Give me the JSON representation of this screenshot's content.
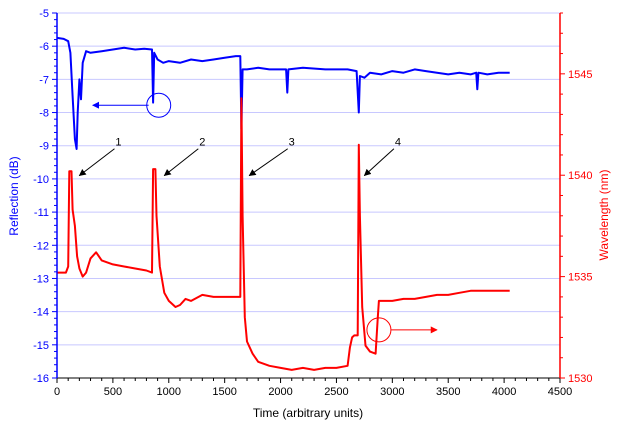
{
  "chart_data": {
    "type": "line",
    "title": "",
    "xlabel": "Time (arbitrary units)",
    "ylabel_left": "Reflection (dB)",
    "ylabel_right": "Wavelength (nm)",
    "xlim": [
      0,
      4500
    ],
    "ylim_left": [
      -16,
      -5
    ],
    "ylim_right": [
      1530,
      1548
    ],
    "x_ticks": [
      0,
      500,
      1000,
      1500,
      2000,
      2500,
      3000,
      3500,
      4000,
      4500
    ],
    "y_left_ticks": [
      -16,
      -15,
      -14,
      -13,
      -12,
      -11,
      -10,
      -9,
      -8,
      -7,
      -6,
      -5
    ],
    "y_right_ticks": [
      1530,
      1535,
      1540,
      1545
    ],
    "grid": "horizontal",
    "colors": {
      "reflection": "#0000ff",
      "wavelength": "#ff0000",
      "grid": "#c8c8ff"
    },
    "series": [
      {
        "axis": "left",
        "color": "#0000ff",
        "points": [
          [
            0,
            -5.75
          ],
          [
            60,
            -5.78
          ],
          [
            100,
            -5.85
          ],
          [
            120,
            -6.2
          ],
          [
            140,
            -7.5
          ],
          [
            160,
            -8.8
          ],
          [
            175,
            -9.1
          ],
          [
            185,
            -8.0
          ],
          [
            200,
            -7.0
          ],
          [
            215,
            -7.6
          ],
          [
            230,
            -6.5
          ],
          [
            260,
            -6.15
          ],
          [
            300,
            -6.2
          ],
          [
            400,
            -6.15
          ],
          [
            500,
            -6.1
          ],
          [
            600,
            -6.05
          ],
          [
            700,
            -6.1
          ],
          [
            780,
            -6.08
          ],
          [
            850,
            -6.1
          ],
          [
            860,
            -7.7
          ],
          [
            870,
            -6.2
          ],
          [
            900,
            -6.4
          ],
          [
            950,
            -6.5
          ],
          [
            1000,
            -6.45
          ],
          [
            1100,
            -6.5
          ],
          [
            1200,
            -6.4
          ],
          [
            1300,
            -6.45
          ],
          [
            1400,
            -6.4
          ],
          [
            1500,
            -6.35
          ],
          [
            1600,
            -6.3
          ],
          [
            1640,
            -6.3
          ],
          [
            1650,
            -8.5
          ],
          [
            1660,
            -6.7
          ],
          [
            1700,
            -6.7
          ],
          [
            1800,
            -6.65
          ],
          [
            1900,
            -6.7
          ],
          [
            2000,
            -6.7
          ],
          [
            2050,
            -6.7
          ],
          [
            2060,
            -7.4
          ],
          [
            2070,
            -6.7
          ],
          [
            2200,
            -6.65
          ],
          [
            2400,
            -6.7
          ],
          [
            2600,
            -6.7
          ],
          [
            2680,
            -6.75
          ],
          [
            2700,
            -8.0
          ],
          [
            2710,
            -6.9
          ],
          [
            2750,
            -6.95
          ],
          [
            2800,
            -6.8
          ],
          [
            2900,
            -6.85
          ],
          [
            3000,
            -6.75
          ],
          [
            3100,
            -6.8
          ],
          [
            3200,
            -6.7
          ],
          [
            3300,
            -6.75
          ],
          [
            3400,
            -6.8
          ],
          [
            3500,
            -6.85
          ],
          [
            3600,
            -6.8
          ],
          [
            3700,
            -6.85
          ],
          [
            3750,
            -6.8
          ],
          [
            3760,
            -7.3
          ],
          [
            3770,
            -6.8
          ],
          [
            3850,
            -6.85
          ],
          [
            3950,
            -6.8
          ],
          [
            4050,
            -6.8
          ]
        ]
      },
      {
        "axis": "right",
        "color": "#ff0000",
        "points": [
          [
            0,
            1535.2
          ],
          [
            80,
            1535.2
          ],
          [
            100,
            1535.5
          ],
          [
            110,
            1540.2
          ],
          [
            130,
            1540.2
          ],
          [
            140,
            1538.3
          ],
          [
            160,
            1537.5
          ],
          [
            180,
            1536.0
          ],
          [
            200,
            1535.4
          ],
          [
            230,
            1535.0
          ],
          [
            260,
            1535.2
          ],
          [
            300,
            1535.9
          ],
          [
            350,
            1536.2
          ],
          [
            400,
            1535.8
          ],
          [
            500,
            1535.6
          ],
          [
            600,
            1535.5
          ],
          [
            700,
            1535.4
          ],
          [
            800,
            1535.3
          ],
          [
            850,
            1535.2
          ],
          [
            860,
            1540.3
          ],
          [
            880,
            1540.3
          ],
          [
            890,
            1538.0
          ],
          [
            920,
            1535.5
          ],
          [
            960,
            1534.2
          ],
          [
            1000,
            1533.8
          ],
          [
            1060,
            1533.5
          ],
          [
            1100,
            1533.6
          ],
          [
            1150,
            1533.9
          ],
          [
            1200,
            1533.8
          ],
          [
            1300,
            1534.1
          ],
          [
            1400,
            1534.0
          ],
          [
            1500,
            1534.0
          ],
          [
            1600,
            1534.0
          ],
          [
            1640,
            1534.0
          ],
          [
            1650,
            1543.8
          ],
          [
            1660,
            1538.0
          ],
          [
            1680,
            1533.0
          ],
          [
            1700,
            1531.8
          ],
          [
            1750,
            1531.2
          ],
          [
            1800,
            1530.8
          ],
          [
            1900,
            1530.6
          ],
          [
            2000,
            1530.5
          ],
          [
            2100,
            1530.4
          ],
          [
            2200,
            1530.5
          ],
          [
            2300,
            1530.4
          ],
          [
            2400,
            1530.5
          ],
          [
            2500,
            1530.5
          ],
          [
            2600,
            1530.6
          ],
          [
            2620,
            1531.5
          ],
          [
            2640,
            1532.0
          ],
          [
            2660,
            1532.1
          ],
          [
            2690,
            1532.1
          ],
          [
            2700,
            1541.5
          ],
          [
            2710,
            1538.0
          ],
          [
            2730,
            1533.5
          ],
          [
            2760,
            1531.6
          ],
          [
            2800,
            1531.3
          ],
          [
            2850,
            1531.2
          ],
          [
            2870,
            1533.0
          ],
          [
            2880,
            1533.8
          ],
          [
            2950,
            1533.8
          ],
          [
            3000,
            1533.8
          ],
          [
            3100,
            1533.9
          ],
          [
            3200,
            1533.9
          ],
          [
            3300,
            1534.0
          ],
          [
            3400,
            1534.1
          ],
          [
            3500,
            1534.1
          ],
          [
            3600,
            1534.2
          ],
          [
            3700,
            1534.3
          ],
          [
            3800,
            1534.3
          ],
          [
            3900,
            1534.3
          ],
          [
            4000,
            1534.3
          ],
          [
            4050,
            1534.3
          ]
        ]
      }
    ],
    "annotations": [
      {
        "label": "1",
        "label_at": [
          550,
          -9.0
        ],
        "arrow_to": [
          200,
          -9.9
        ]
      },
      {
        "label": "2",
        "label_at": [
          1300,
          -9.0
        ],
        "arrow_to": [
          960,
          -9.9
        ]
      },
      {
        "label": "3",
        "label_at": [
          2100,
          -9.0
        ],
        "arrow_to": [
          1720,
          -9.9
        ]
      },
      {
        "label": "4",
        "label_at": [
          3050,
          -9.0
        ],
        "arrow_to": [
          2750,
          -9.9
        ]
      }
    ],
    "axis_indicators": [
      {
        "target": "left",
        "circle_at": [
          910,
          -7.78
        ],
        "arrow_from": [
          820,
          -7.78
        ],
        "arrow_to": [
          320,
          -7.78
        ]
      },
      {
        "target": "right",
        "circle_at": [
          2880,
          -14.55
        ],
        "arrow_from": [
          2990,
          -14.55
        ],
        "arrow_to": [
          3400,
          -14.55
        ]
      }
    ]
  }
}
